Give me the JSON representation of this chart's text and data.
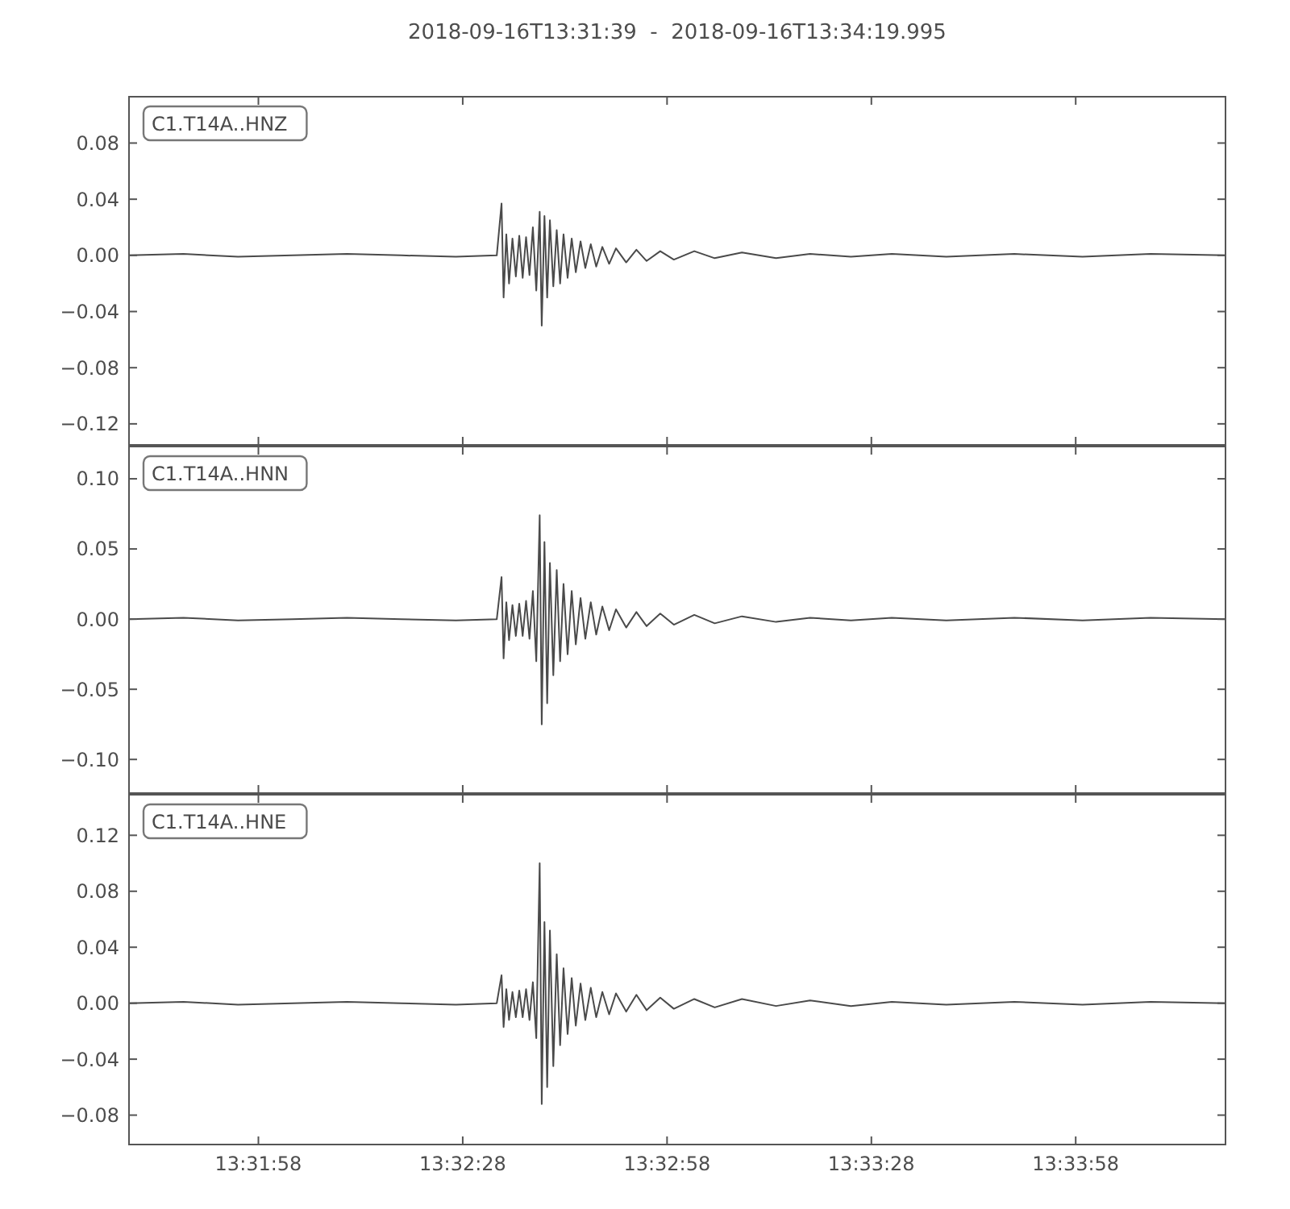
{
  "chart_data": [
    {
      "type": "line",
      "title": "2018-09-16T13:31:39  -  2018-09-16T13:34:19.995",
      "legend": "top left",
      "tick_labels": "y",
      "x": [
        "2018-09-16T13:31:39",
        "2018-09-16T13:31:47",
        "2018-09-16T13:31:55",
        "2018-09-16T13:32:03",
        "2018-09-16T13:32:11",
        "2018-09-16T13:32:19",
        "2018-09-16T13:32:27",
        "2018-09-16T13:32:33",
        "2018-09-16T13:32:33.7",
        "2018-09-16T13:32:34",
        "2018-09-16T13:32:34.4",
        "2018-09-16T13:32:34.8",
        "2018-09-16T13:32:35.3",
        "2018-09-16T13:32:35.8",
        "2018-09-16T13:32:36.3",
        "2018-09-16T13:32:36.8",
        "2018-09-16T13:32:37.3",
        "2018-09-16T13:32:37.8",
        "2018-09-16T13:32:38.3",
        "2018-09-16T13:32:38.8",
        "2018-09-16T13:32:39.3",
        "2018-09-16T13:32:39.6",
        "2018-09-16T13:32:40",
        "2018-09-16T13:32:40.4",
        "2018-09-16T13:32:40.8",
        "2018-09-16T13:32:41.3",
        "2018-09-16T13:32:41.8",
        "2018-09-16T13:32:42.3",
        "2018-09-16T13:32:42.8",
        "2018-09-16T13:32:43.4",
        "2018-09-16T13:32:44",
        "2018-09-16T13:32:44.6",
        "2018-09-16T13:32:45.3",
        "2018-09-16T13:32:46",
        "2018-09-16T13:32:46.8",
        "2018-09-16T13:32:47.6",
        "2018-09-16T13:32:48.5",
        "2018-09-16T13:32:49.5",
        "2018-09-16T13:32:50.5",
        "2018-09-16T13:32:52",
        "2018-09-16T13:32:53.5",
        "2018-09-16T13:32:55",
        "2018-09-16T13:32:57",
        "2018-09-16T13:32:59",
        "2018-09-16T13:33:02",
        "2018-09-16T13:33:05",
        "2018-09-16T13:33:09",
        "2018-09-16T13:33:14",
        "2018-09-16T13:33:19",
        "2018-09-16T13:33:25",
        "2018-09-16T13:33:31",
        "2018-09-16T13:33:39",
        "2018-09-16T13:33:49",
        "2018-09-16T13:33:59",
        "2018-09-16T13:34:09",
        "2018-09-16T13:34:19.995"
      ],
      "xlim": [
        "2018-09-16T13:31:39",
        "2018-09-16T13:34:19.995"
      ],
      "xticks": [
        {
          "value": "2018-09-16T13:31:58",
          "label": null
        },
        {
          "value": "2018-09-16T13:32:28",
          "label": null
        },
        {
          "value": "2018-09-16T13:32:58",
          "label": null
        },
        {
          "value": "2018-09-16T13:33:28",
          "label": null
        },
        {
          "value": "2018-09-16T13:33:58",
          "label": null
        }
      ],
      "ylim": [
        -0.135,
        0.113
      ],
      "yticks": [
        {
          "value": 0.08,
          "label": "0.08"
        },
        {
          "value": 0.04,
          "label": "0.04"
        },
        {
          "value": 0,
          "label": "0.00"
        },
        {
          "value": -0.04,
          "label": "−0.04"
        },
        {
          "value": -0.08,
          "label": "−0.08"
        },
        {
          "value": -0.12,
          "label": "−0.12"
        }
      ],
      "series": [
        {
          "name": "C1.T14A..HNZ",
          "color": "#4a4a4a",
          "values": [
            0,
            0.001,
            -0.001,
            0,
            0.001,
            0,
            -0.001,
            0,
            0.037,
            -0.03,
            0.015,
            -0.02,
            0.012,
            -0.015,
            0.014,
            -0.016,
            0.013,
            -0.014,
            0.02,
            -0.025,
            0.031,
            -0.05,
            0.028,
            -0.03,
            0.025,
            -0.022,
            0.018,
            -0.02,
            0.015,
            -0.016,
            0.012,
            -0.012,
            0.01,
            -0.009,
            0.008,
            -0.008,
            0.006,
            -0.006,
            0.005,
            -0.005,
            0.004,
            -0.004,
            0.003,
            -0.003,
            0.003,
            -0.002,
            0.002,
            -0.002,
            0.001,
            -0.001,
            0.001,
            -0.001,
            0.001,
            -0.001,
            0.001,
            0
          ]
        }
      ]
    },
    {
      "type": "line",
      "legend": "top left",
      "tick_labels": "y",
      "x": [
        "2018-09-16T13:31:39",
        "2018-09-16T13:31:47",
        "2018-09-16T13:31:55",
        "2018-09-16T13:32:03",
        "2018-09-16T13:32:11",
        "2018-09-16T13:32:19",
        "2018-09-16T13:32:27",
        "2018-09-16T13:32:33",
        "2018-09-16T13:32:33.7",
        "2018-09-16T13:32:34",
        "2018-09-16T13:32:34.4",
        "2018-09-16T13:32:34.8",
        "2018-09-16T13:32:35.3",
        "2018-09-16T13:32:35.8",
        "2018-09-16T13:32:36.3",
        "2018-09-16T13:32:36.8",
        "2018-09-16T13:32:37.3",
        "2018-09-16T13:32:37.8",
        "2018-09-16T13:32:38.3",
        "2018-09-16T13:32:38.8",
        "2018-09-16T13:32:39.3",
        "2018-09-16T13:32:39.6",
        "2018-09-16T13:32:40",
        "2018-09-16T13:32:40.4",
        "2018-09-16T13:32:40.8",
        "2018-09-16T13:32:41.3",
        "2018-09-16T13:32:41.8",
        "2018-09-16T13:32:42.3",
        "2018-09-16T13:32:42.8",
        "2018-09-16T13:32:43.4",
        "2018-09-16T13:32:44",
        "2018-09-16T13:32:44.6",
        "2018-09-16T13:32:45.3",
        "2018-09-16T13:32:46",
        "2018-09-16T13:32:46.8",
        "2018-09-16T13:32:47.6",
        "2018-09-16T13:32:48.5",
        "2018-09-16T13:32:49.5",
        "2018-09-16T13:32:50.5",
        "2018-09-16T13:32:52",
        "2018-09-16T13:32:53.5",
        "2018-09-16T13:32:55",
        "2018-09-16T13:32:57",
        "2018-09-16T13:32:59",
        "2018-09-16T13:33:02",
        "2018-09-16T13:33:05",
        "2018-09-16T13:33:09",
        "2018-09-16T13:33:14",
        "2018-09-16T13:33:19",
        "2018-09-16T13:33:25",
        "2018-09-16T13:33:31",
        "2018-09-16T13:33:39",
        "2018-09-16T13:33:49",
        "2018-09-16T13:33:59",
        "2018-09-16T13:34:09",
        "2018-09-16T13:34:19.995"
      ],
      "xlim": [
        "2018-09-16T13:31:39",
        "2018-09-16T13:34:19.995"
      ],
      "xticks": [
        {
          "value": "2018-09-16T13:31:58",
          "label": null
        },
        {
          "value": "2018-09-16T13:32:28",
          "label": null
        },
        {
          "value": "2018-09-16T13:32:58",
          "label": null
        },
        {
          "value": "2018-09-16T13:33:28",
          "label": null
        },
        {
          "value": "2018-09-16T13:33:58",
          "label": null
        }
      ],
      "ylim": [
        -0.124,
        0.123
      ],
      "yticks": [
        {
          "value": 0.1,
          "label": "0.10"
        },
        {
          "value": 0.05,
          "label": "0.05"
        },
        {
          "value": 0,
          "label": "0.00"
        },
        {
          "value": -0.05,
          "label": "−0.05"
        },
        {
          "value": -0.1,
          "label": "−0.10"
        }
      ],
      "series": [
        {
          "name": "C1.T14A..HNN",
          "color": "#4a4a4a",
          "values": [
            0,
            0.001,
            -0.001,
            0,
            0.001,
            0,
            -0.001,
            0,
            0.03,
            -0.028,
            0.012,
            -0.015,
            0.01,
            -0.012,
            0.011,
            -0.012,
            0.013,
            -0.014,
            0.02,
            -0.03,
            0.074,
            -0.075,
            0.055,
            -0.06,
            0.04,
            -0.04,
            0.035,
            -0.03,
            0.025,
            -0.025,
            0.02,
            -0.018,
            0.015,
            -0.014,
            0.012,
            -0.011,
            0.009,
            -0.008,
            0.007,
            -0.006,
            0.005,
            -0.005,
            0.004,
            -0.004,
            0.003,
            -0.003,
            0.002,
            -0.002,
            0.001,
            -0.001,
            0.001,
            -0.001,
            0.001,
            -0.001,
            0.001,
            0
          ]
        }
      ]
    },
    {
      "type": "line",
      "legend": "top left",
      "x": [
        "2018-09-16T13:31:39",
        "2018-09-16T13:31:47",
        "2018-09-16T13:31:55",
        "2018-09-16T13:32:03",
        "2018-09-16T13:32:11",
        "2018-09-16T13:32:19",
        "2018-09-16T13:32:27",
        "2018-09-16T13:32:33",
        "2018-09-16T13:32:33.7",
        "2018-09-16T13:32:34",
        "2018-09-16T13:32:34.4",
        "2018-09-16T13:32:34.8",
        "2018-09-16T13:32:35.3",
        "2018-09-16T13:32:35.8",
        "2018-09-16T13:32:36.3",
        "2018-09-16T13:32:36.8",
        "2018-09-16T13:32:37.3",
        "2018-09-16T13:32:37.8",
        "2018-09-16T13:32:38.3",
        "2018-09-16T13:32:38.8",
        "2018-09-16T13:32:39.3",
        "2018-09-16T13:32:39.6",
        "2018-09-16T13:32:40",
        "2018-09-16T13:32:40.4",
        "2018-09-16T13:32:40.8",
        "2018-09-16T13:32:41.3",
        "2018-09-16T13:32:41.8",
        "2018-09-16T13:32:42.3",
        "2018-09-16T13:32:42.8",
        "2018-09-16T13:32:43.4",
        "2018-09-16T13:32:44",
        "2018-09-16T13:32:44.6",
        "2018-09-16T13:32:45.3",
        "2018-09-16T13:32:46",
        "2018-09-16T13:32:46.8",
        "2018-09-16T13:32:47.6",
        "2018-09-16T13:32:48.5",
        "2018-09-16T13:32:49.5",
        "2018-09-16T13:32:50.5",
        "2018-09-16T13:32:52",
        "2018-09-16T13:32:53.5",
        "2018-09-16T13:32:55",
        "2018-09-16T13:32:57",
        "2018-09-16T13:32:59",
        "2018-09-16T13:33:02",
        "2018-09-16T13:33:05",
        "2018-09-16T13:33:09",
        "2018-09-16T13:33:14",
        "2018-09-16T13:33:19",
        "2018-09-16T13:33:25",
        "2018-09-16T13:33:31",
        "2018-09-16T13:33:39",
        "2018-09-16T13:33:49",
        "2018-09-16T13:33:59",
        "2018-09-16T13:34:09",
        "2018-09-16T13:34:19.995"
      ],
      "xlim": [
        "2018-09-16T13:31:39",
        "2018-09-16T13:34:19.995"
      ],
      "xticks": [
        {
          "value": "2018-09-16T13:31:58",
          "label": "13:31:58"
        },
        {
          "value": "2018-09-16T13:32:28",
          "label": "13:32:28"
        },
        {
          "value": "2018-09-16T13:32:58",
          "label": "13:32:58"
        },
        {
          "value": "2018-09-16T13:33:28",
          "label": "13:33:28"
        },
        {
          "value": "2018-09-16T13:33:58",
          "label": "13:33:58"
        }
      ],
      "ylim": [
        -0.101,
        0.149
      ],
      "yticks": [
        {
          "value": 0.12,
          "label": "0.12"
        },
        {
          "value": 0.08,
          "label": "0.08"
        },
        {
          "value": 0.04,
          "label": "0.04"
        },
        {
          "value": 0,
          "label": "0.00"
        },
        {
          "value": -0.04,
          "label": "−0.04"
        },
        {
          "value": -0.08,
          "label": "−0.08"
        }
      ],
      "series": [
        {
          "name": "C1.T14A..HNE",
          "color": "#4a4a4a",
          "values": [
            0,
            0.001,
            -0.001,
            0,
            0.001,
            0,
            -0.001,
            0,
            0.02,
            -0.017,
            0.01,
            -0.012,
            0.008,
            -0.01,
            0.009,
            -0.01,
            0.01,
            -0.012,
            0.015,
            -0.025,
            0.1,
            -0.072,
            0.058,
            -0.06,
            0.052,
            -0.045,
            0.035,
            -0.03,
            0.025,
            -0.022,
            0.018,
            -0.016,
            0.014,
            -0.012,
            0.011,
            -0.01,
            0.008,
            -0.008,
            0.007,
            -0.006,
            0.006,
            -0.005,
            0.004,
            -0.004,
            0.003,
            -0.003,
            0.003,
            -0.002,
            0.002,
            -0.002,
            0.001,
            -0.001,
            0.001,
            -0.001,
            0.001,
            0
          ]
        }
      ]
    }
  ]
}
